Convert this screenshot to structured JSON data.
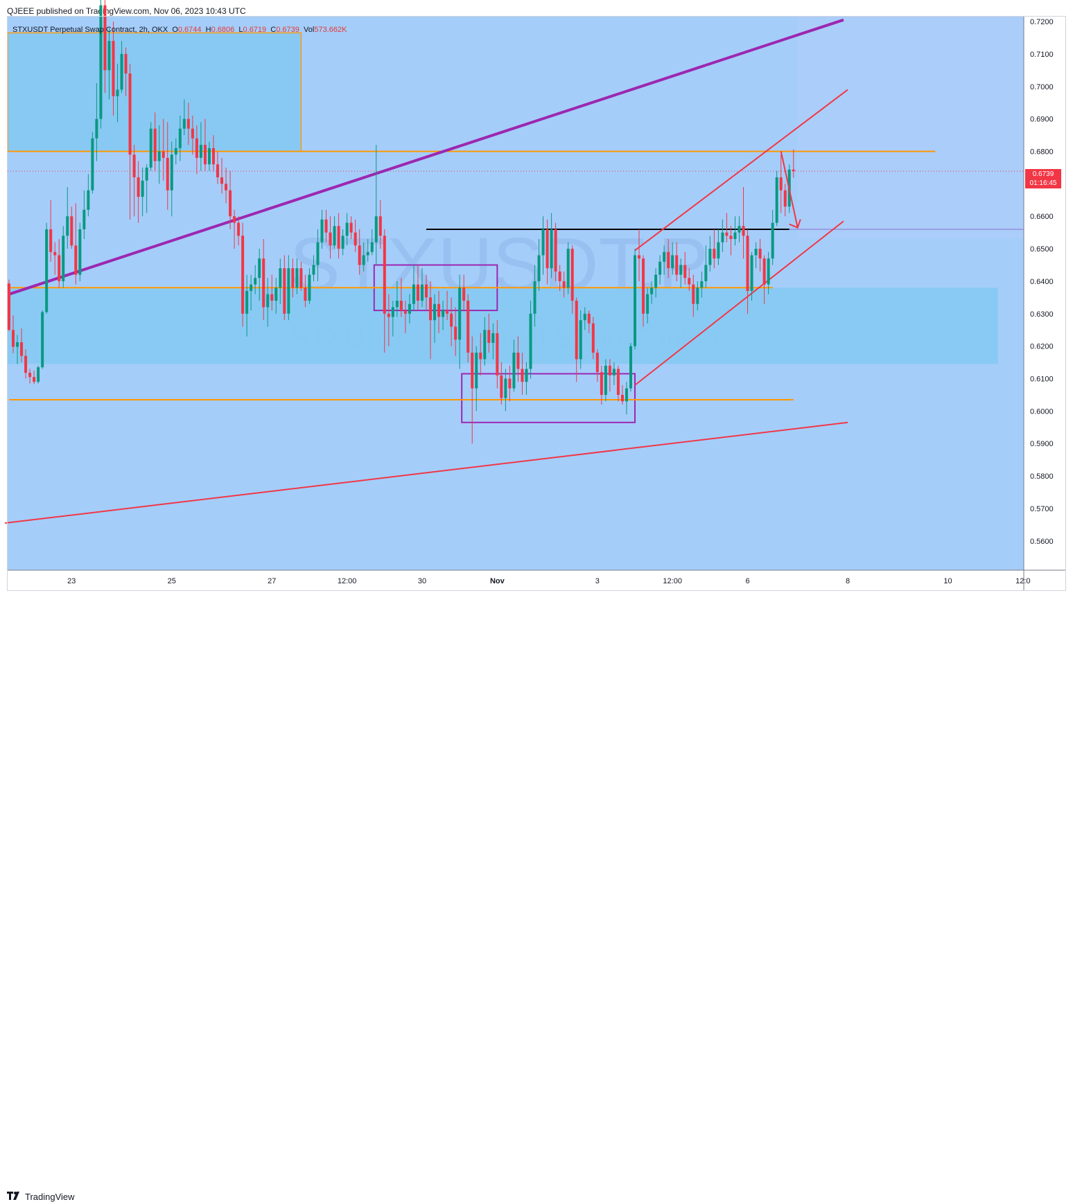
{
  "header": {
    "published": "QJEEE published on TradingView.com, Nov 06, 2023 10:43 UTC"
  },
  "legend": {
    "symbol": "STXUSDT Perpetual Swap Contract, 2h, OKX",
    "o_label": "O",
    "o_value": "0.6744",
    "h_label": "H",
    "h_value": "0.6806",
    "l_label": "L",
    "l_value": "0.6719",
    "c_label": "C",
    "c_value": "0.6739",
    "vol_label": "Vol",
    "vol_value": "573.662K"
  },
  "watermark": {
    "ticker": "STXUSDT.P",
    "description": "STXUSDT Perpetual Swap Contract"
  },
  "price_tag": {
    "price": "0.6739",
    "countdown": "01:16:45"
  },
  "footer": {
    "brand": "TradingView"
  },
  "colors": {
    "background": "#a5cdfa",
    "up": "#089981",
    "down": "#f23645",
    "zone_fill": "#87c9f3",
    "orange_line": "#ff9800",
    "purple_line": "#9c27b0",
    "red_line": "#f23645",
    "black_line": "#000000"
  },
  "chart_data": {
    "type": "candlestick",
    "interval": "2h",
    "exchange": "OKX",
    "ylim": [
      0.551,
      0.7215
    ],
    "yticks": [
      "0.5600",
      "0.5700",
      "0.5800",
      "0.5900",
      "0.6000",
      "0.6100",
      "0.6200",
      "0.6300",
      "0.6400",
      "0.6500",
      "0.6600",
      "0.6800",
      "0.6900",
      "0.7000",
      "0.7100",
      "0.7200"
    ],
    "xtick_labels": [
      {
        "label": "23",
        "bar": 15
      },
      {
        "label": "25",
        "bar": 39
      },
      {
        "label": "27",
        "bar": 63
      },
      {
        "label": "12:00",
        "bar": 81
      },
      {
        "label": "30",
        "bar": 99
      },
      {
        "label": "Nov",
        "bar": 117
      },
      {
        "label": "3",
        "bar": 141
      },
      {
        "label": "12:00",
        "bar": 159
      },
      {
        "label": "6",
        "bar": 177
      },
      {
        "label": "8",
        "bar": 201
      },
      {
        "label": "10",
        "bar": 225
      },
      {
        "label": "12:0",
        "bar": 243
      }
    ],
    "candles": [
      [
        0.6393,
        0.6405,
        0.6247,
        0.625
      ],
      [
        0.625,
        0.6295,
        0.6178,
        0.6198
      ],
      [
        0.6198,
        0.6235,
        0.6145,
        0.6212
      ],
      [
        0.6212,
        0.6255,
        0.615,
        0.617
      ],
      [
        0.617,
        0.619,
        0.61,
        0.6118
      ],
      [
        0.6118,
        0.613,
        0.6085,
        0.6105
      ],
      [
        0.6105,
        0.6125,
        0.6083,
        0.609
      ],
      [
        0.609,
        0.614,
        0.6085,
        0.6135
      ],
      [
        0.6135,
        0.631,
        0.613,
        0.6305
      ],
      [
        0.6305,
        0.658,
        0.63,
        0.656
      ],
      [
        0.656,
        0.665,
        0.646,
        0.649
      ],
      [
        0.649,
        0.652,
        0.642,
        0.648
      ],
      [
        0.648,
        0.653,
        0.638,
        0.64
      ],
      [
        0.64,
        0.657,
        0.638,
        0.654
      ],
      [
        0.654,
        0.669,
        0.65,
        0.66
      ],
      [
        0.66,
        0.663,
        0.65,
        0.651
      ],
      [
        0.651,
        0.664,
        0.639,
        0.642
      ],
      [
        0.642,
        0.658,
        0.64,
        0.656
      ],
      [
        0.656,
        0.668,
        0.653,
        0.662
      ],
      [
        0.662,
        0.673,
        0.66,
        0.668
      ],
      [
        0.668,
        0.686,
        0.667,
        0.684
      ],
      [
        0.684,
        0.701,
        0.677,
        0.69
      ],
      [
        0.69,
        0.734,
        0.687,
        0.725
      ],
      [
        0.725,
        0.73,
        0.698,
        0.705
      ],
      [
        0.705,
        0.718,
        0.696,
        0.714
      ],
      [
        0.714,
        0.72,
        0.691,
        0.697
      ],
      [
        0.697,
        0.707,
        0.689,
        0.699
      ],
      [
        0.699,
        0.714,
        0.698,
        0.71
      ],
      [
        0.71,
        0.712,
        0.697,
        0.704
      ],
      [
        0.704,
        0.707,
        0.659,
        0.679
      ],
      [
        0.679,
        0.682,
        0.66,
        0.672
      ],
      [
        0.672,
        0.677,
        0.658,
        0.666
      ],
      [
        0.666,
        0.675,
        0.66,
        0.671
      ],
      [
        0.671,
        0.676,
        0.661,
        0.675
      ],
      [
        0.675,
        0.689,
        0.674,
        0.687
      ],
      [
        0.687,
        0.692,
        0.674,
        0.677
      ],
      [
        0.677,
        0.688,
        0.67,
        0.68
      ],
      [
        0.68,
        0.69,
        0.671,
        0.678
      ],
      [
        0.678,
        0.689,
        0.662,
        0.668
      ],
      [
        0.668,
        0.683,
        0.66,
        0.679
      ],
      [
        0.679,
        0.684,
        0.676,
        0.681
      ],
      [
        0.681,
        0.691,
        0.677,
        0.687
      ],
      [
        0.687,
        0.696,
        0.685,
        0.69
      ],
      [
        0.69,
        0.695,
        0.682,
        0.687
      ],
      [
        0.687,
        0.691,
        0.679,
        0.684
      ],
      [
        0.684,
        0.688,
        0.673,
        0.678
      ],
      [
        0.678,
        0.689,
        0.674,
        0.682
      ],
      [
        0.682,
        0.69,
        0.674,
        0.676
      ],
      [
        0.676,
        0.683,
        0.674,
        0.681
      ],
      [
        0.681,
        0.685,
        0.674,
        0.676
      ],
      [
        0.676,
        0.68,
        0.67,
        0.672
      ],
      [
        0.672,
        0.678,
        0.667,
        0.67
      ],
      [
        0.67,
        0.675,
        0.664,
        0.668
      ],
      [
        0.668,
        0.674,
        0.656,
        0.66
      ],
      [
        0.66,
        0.662,
        0.65,
        0.658
      ],
      [
        0.658,
        0.66,
        0.651,
        0.654
      ],
      [
        0.654,
        0.658,
        0.626,
        0.63
      ],
      [
        0.63,
        0.642,
        0.623,
        0.637
      ],
      [
        0.637,
        0.642,
        0.631,
        0.639
      ],
      [
        0.639,
        0.645,
        0.636,
        0.641
      ],
      [
        0.641,
        0.65,
        0.634,
        0.647
      ],
      [
        0.647,
        0.653,
        0.628,
        0.632
      ],
      [
        0.632,
        0.641,
        0.626,
        0.636
      ],
      [
        0.636,
        0.642,
        0.631,
        0.634
      ],
      [
        0.634,
        0.641,
        0.63,
        0.638
      ],
      [
        0.638,
        0.647,
        0.633,
        0.644
      ],
      [
        0.644,
        0.648,
        0.628,
        0.63
      ],
      [
        0.63,
        0.648,
        0.628,
        0.644
      ],
      [
        0.644,
        0.647,
        0.635,
        0.638
      ],
      [
        0.638,
        0.647,
        0.636,
        0.644
      ],
      [
        0.644,
        0.646,
        0.637,
        0.638
      ],
      [
        0.638,
        0.642,
        0.632,
        0.634
      ],
      [
        0.634,
        0.644,
        0.633,
        0.642
      ],
      [
        0.642,
        0.648,
        0.64,
        0.645
      ],
      [
        0.645,
        0.656,
        0.64,
        0.652
      ],
      [
        0.652,
        0.662,
        0.65,
        0.659
      ],
      [
        0.659,
        0.662,
        0.652,
        0.655
      ],
      [
        0.655,
        0.66,
        0.647,
        0.651
      ],
      [
        0.651,
        0.66,
        0.65,
        0.657
      ],
      [
        0.657,
        0.661,
        0.647,
        0.65
      ],
      [
        0.65,
        0.656,
        0.648,
        0.654
      ],
      [
        0.654,
        0.661,
        0.651,
        0.658
      ],
      [
        0.658,
        0.66,
        0.653,
        0.655
      ],
      [
        0.655,
        0.659,
        0.649,
        0.651
      ],
      [
        0.651,
        0.656,
        0.642,
        0.645
      ],
      [
        0.645,
        0.652,
        0.643,
        0.648
      ],
      [
        0.648,
        0.653,
        0.646,
        0.649
      ],
      [
        0.649,
        0.656,
        0.648,
        0.652
      ],
      [
        0.652,
        0.682,
        0.645,
        0.66
      ],
      [
        0.66,
        0.665,
        0.65,
        0.654
      ],
      [
        0.654,
        0.656,
        0.618,
        0.63
      ],
      [
        0.63,
        0.636,
        0.62,
        0.629
      ],
      [
        0.629,
        0.634,
        0.623,
        0.632
      ],
      [
        0.632,
        0.64,
        0.629,
        0.634
      ],
      [
        0.634,
        0.641,
        0.629,
        0.631
      ],
      [
        0.631,
        0.634,
        0.624,
        0.63
      ],
      [
        0.63,
        0.636,
        0.627,
        0.633
      ],
      [
        0.633,
        0.645,
        0.631,
        0.639
      ],
      [
        0.639,
        0.645,
        0.631,
        0.634
      ],
      [
        0.634,
        0.644,
        0.632,
        0.639
      ],
      [
        0.639,
        0.642,
        0.631,
        0.635
      ],
      [
        0.635,
        0.64,
        0.616,
        0.628
      ],
      [
        0.628,
        0.636,
        0.621,
        0.633
      ],
      [
        0.633,
        0.637,
        0.624,
        0.629
      ],
      [
        0.629,
        0.634,
        0.625,
        0.631
      ],
      [
        0.631,
        0.637,
        0.628,
        0.63
      ],
      [
        0.63,
        0.635,
        0.62,
        0.626
      ],
      [
        0.626,
        0.632,
        0.617,
        0.622
      ],
      [
        0.622,
        0.642,
        0.613,
        0.638
      ],
      [
        0.638,
        0.642,
        0.631,
        0.634
      ],
      [
        0.634,
        0.636,
        0.615,
        0.618
      ],
      [
        0.618,
        0.623,
        0.59,
        0.607
      ],
      [
        0.607,
        0.62,
        0.6,
        0.618
      ],
      [
        0.618,
        0.624,
        0.611,
        0.616
      ],
      [
        0.616,
        0.629,
        0.614,
        0.625
      ],
      [
        0.625,
        0.63,
        0.618,
        0.621
      ],
      [
        0.621,
        0.627,
        0.616,
        0.624
      ],
      [
        0.624,
        0.628,
        0.607,
        0.611
      ],
      [
        0.611,
        0.615,
        0.602,
        0.604
      ],
      [
        0.604,
        0.613,
        0.6,
        0.61
      ],
      [
        0.61,
        0.614,
        0.603,
        0.607
      ],
      [
        0.607,
        0.622,
        0.606,
        0.618
      ],
      [
        0.618,
        0.623,
        0.609,
        0.613
      ],
      [
        0.613,
        0.618,
        0.605,
        0.609
      ],
      [
        0.609,
        0.615,
        0.605,
        0.613
      ],
      [
        0.613,
        0.634,
        0.61,
        0.63
      ],
      [
        0.63,
        0.645,
        0.626,
        0.64
      ],
      [
        0.64,
        0.653,
        0.637,
        0.648
      ],
      [
        0.648,
        0.66,
        0.642,
        0.656
      ],
      [
        0.656,
        0.659,
        0.639,
        0.644
      ],
      [
        0.644,
        0.661,
        0.641,
        0.656
      ],
      [
        0.656,
        0.658,
        0.64,
        0.643
      ],
      [
        0.643,
        0.645,
        0.637,
        0.64
      ],
      [
        0.64,
        0.643,
        0.635,
        0.638
      ],
      [
        0.638,
        0.652,
        0.636,
        0.65
      ],
      [
        0.65,
        0.651,
        0.63,
        0.634
      ],
      [
        0.634,
        0.635,
        0.609,
        0.616
      ],
      [
        0.616,
        0.631,
        0.613,
        0.628
      ],
      [
        0.628,
        0.632,
        0.625,
        0.63
      ],
      [
        0.63,
        0.631,
        0.624,
        0.627
      ],
      [
        0.627,
        0.629,
        0.616,
        0.618
      ],
      [
        0.618,
        0.619,
        0.609,
        0.612
      ],
      [
        0.612,
        0.614,
        0.602,
        0.605
      ],
      [
        0.605,
        0.616,
        0.603,
        0.614
      ],
      [
        0.614,
        0.616,
        0.606,
        0.611
      ],
      [
        0.611,
        0.615,
        0.608,
        0.613
      ],
      [
        0.613,
        0.614,
        0.603,
        0.605
      ],
      [
        0.605,
        0.608,
        0.602,
        0.603
      ],
      [
        0.603,
        0.609,
        0.599,
        0.607
      ],
      [
        0.607,
        0.621,
        0.606,
        0.62
      ],
      [
        0.62,
        0.65,
        0.619,
        0.648
      ],
      [
        0.648,
        0.656,
        0.64,
        0.647
      ],
      [
        0.647,
        0.648,
        0.626,
        0.63
      ],
      [
        0.63,
        0.638,
        0.627,
        0.636
      ],
      [
        0.636,
        0.64,
        0.633,
        0.638
      ],
      [
        0.638,
        0.644,
        0.635,
        0.642
      ],
      [
        0.642,
        0.648,
        0.639,
        0.646
      ],
      [
        0.646,
        0.651,
        0.642,
        0.649
      ],
      [
        0.649,
        0.653,
        0.641,
        0.644
      ],
      [
        0.644,
        0.652,
        0.642,
        0.648
      ],
      [
        0.648,
        0.652,
        0.64,
        0.642
      ],
      [
        0.642,
        0.647,
        0.638,
        0.645
      ],
      [
        0.645,
        0.649,
        0.639,
        0.641
      ],
      [
        0.641,
        0.644,
        0.637,
        0.639
      ],
      [
        0.639,
        0.642,
        0.629,
        0.633
      ],
      [
        0.633,
        0.64,
        0.631,
        0.638
      ],
      [
        0.638,
        0.643,
        0.635,
        0.64
      ],
      [
        0.64,
        0.651,
        0.638,
        0.645
      ],
      [
        0.645,
        0.654,
        0.643,
        0.65
      ],
      [
        0.65,
        0.656,
        0.644,
        0.647
      ],
      [
        0.647,
        0.656,
        0.645,
        0.652
      ],
      [
        0.652,
        0.659,
        0.649,
        0.655
      ],
      [
        0.655,
        0.661,
        0.652,
        0.654
      ],
      [
        0.654,
        0.657,
        0.648,
        0.653
      ],
      [
        0.653,
        0.66,
        0.651,
        0.655
      ],
      [
        0.655,
        0.66,
        0.652,
        0.657
      ],
      [
        0.657,
        0.669,
        0.647,
        0.654
      ],
      [
        0.654,
        0.656,
        0.63,
        0.637
      ],
      [
        0.637,
        0.649,
        0.634,
        0.648
      ],
      [
        0.648,
        0.652,
        0.644,
        0.65
      ],
      [
        0.65,
        0.653,
        0.643,
        0.647
      ],
      [
        0.647,
        0.648,
        0.633,
        0.639
      ],
      [
        0.639,
        0.649,
        0.636,
        0.647
      ],
      [
        0.647,
        0.662,
        0.645,
        0.658
      ],
      [
        0.658,
        0.674,
        0.657,
        0.672
      ],
      [
        0.672,
        0.679,
        0.661,
        0.668
      ],
      [
        0.668,
        0.67,
        0.66,
        0.663
      ],
      [
        0.663,
        0.676,
        0.661,
        0.6744
      ],
      [
        0.6744,
        0.6806,
        0.6719,
        0.6739
      ]
    ],
    "levels": [
      {
        "price": 0.656,
        "from_bar": 100,
        "to_bar": 187
      },
      {
        "price": 0.68,
        "from_bar": 0,
        "to_bar": 222
      },
      {
        "price": 0.638,
        "from_bar": 0,
        "to_bar": 183
      },
      {
        "price": 0.6035,
        "from_bar": 0,
        "to_bar": 188
      }
    ],
    "zones": [
      {
        "from_bar": 0,
        "to_bar": 70,
        "top": 0.7165,
        "bottom": 0.68
      },
      {
        "from_bar": 0,
        "to_bar": 237,
        "top": 0.638,
        "bottom": 0.6145
      },
      {
        "from_bar": 88,
        "to_bar": 117,
        "top": 0.645,
        "bottom": 0.631
      },
      {
        "from_bar": 109,
        "to_bar": 150,
        "top": 0.6115,
        "bottom": 0.5965
      }
    ]
  }
}
